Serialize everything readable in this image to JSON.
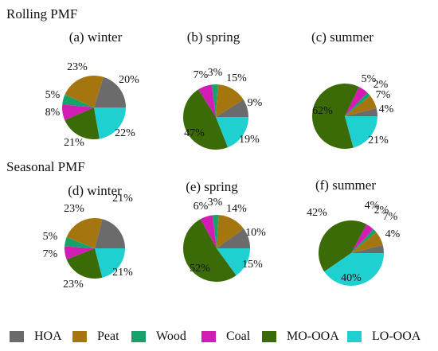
{
  "sections": {
    "rolling": "Rolling PMF",
    "seasonal": "Seasonal PMF"
  },
  "legend": [
    {
      "label": "HOA",
      "color": "#6b6b6b"
    },
    {
      "label": "Peat",
      "color": "#a5750f"
    },
    {
      "label": "Wood",
      "color": "#14a36a"
    },
    {
      "label": "Coal",
      "color": "#d21cb4"
    },
    {
      "label": "MO-OOA",
      "color": "#3b6b07"
    },
    {
      "label": "LO-OOA",
      "color": "#1fd0d0"
    }
  ],
  "chart_data": [
    {
      "type": "pie",
      "title": "(a) winter",
      "categories": [
        "HOA",
        "Peat",
        "Wood",
        "Coal",
        "MO-OOA",
        "LO-OOA"
      ],
      "values": [
        20,
        23,
        5,
        8,
        21,
        22
      ],
      "labels": [
        "20%",
        "23%",
        "5%",
        "8%",
        "21%",
        "22%"
      ]
    },
    {
      "type": "pie",
      "title": "(b) spring",
      "categories": [
        "HOA",
        "Peat",
        "Wood",
        "Coal",
        "MO-OOA",
        "LO-OOA"
      ],
      "values": [
        9,
        15,
        3,
        7,
        47,
        19
      ],
      "labels": [
        "9%",
        "15%",
        "3%",
        "7%",
        "47%",
        "19%"
      ]
    },
    {
      "type": "pie",
      "title": "(c) summer",
      "categories": [
        "HOA",
        "Peat",
        "Wood",
        "Coal",
        "MO-OOA",
        "LO-OOA"
      ],
      "values": [
        4,
        7,
        2,
        5,
        62,
        21
      ],
      "labels": [
        "4%",
        "7%",
        "2%",
        "5%",
        "62%",
        "21%"
      ]
    },
    {
      "type": "pie",
      "title": "(d) winter",
      "categories": [
        "HOA",
        "Peat",
        "Wood",
        "Coal",
        "MO-OOA",
        "LO-OOA"
      ],
      "values": [
        21,
        23,
        5,
        7,
        23,
        21
      ],
      "labels": [
        "21%",
        "23%",
        "5%",
        "7%",
        "23%",
        "21%"
      ]
    },
    {
      "type": "pie",
      "title": "(e) spring",
      "categories": [
        "HOA",
        "Peat",
        "Wood",
        "Coal",
        "MO-OOA",
        "LO-OOA"
      ],
      "values": [
        10,
        14,
        3,
        6,
        52,
        15
      ],
      "labels": [
        "10%",
        "14%",
        "3%",
        "6%",
        "52%",
        "15%"
      ]
    },
    {
      "type": "pie",
      "title": "(f) summer",
      "categories": [
        "HOA",
        "Peat",
        "Wood",
        "Coal",
        "MO-OOA",
        "LO-OOA"
      ],
      "values": [
        4,
        7,
        2,
        4,
        42,
        40
      ],
      "labels": [
        "4%",
        "7%",
        "2%",
        "4%",
        "42%",
        "40%"
      ]
    }
  ]
}
